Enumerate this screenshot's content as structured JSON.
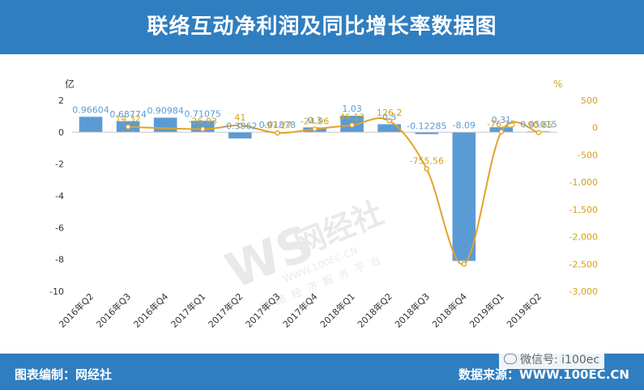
{
  "title": "联络互动净利润及同比增长率数据图",
  "footer": {
    "credit": "图表编制：网经社",
    "source": "数据来源：WWW.100EC.CN",
    "wechat": "微信号: i100ec"
  },
  "watermark": {
    "logo": "WS",
    "brand": "网经社",
    "url": "WWW.100EC.CN",
    "tagline": "网络经济服务平台"
  },
  "colors": {
    "header": "#2f7ec0",
    "bar": "#5b9bd5",
    "line": "#e2a22a",
    "bar_label": "#5b9bd5",
    "line_label": "#d4a017"
  },
  "chart_data": {
    "type": "bar",
    "categories": [
      "2016年Q2",
      "2016年Q3",
      "2016年Q4",
      "2017年Q1",
      "2017年Q2",
      "2017年Q3",
      "2017年Q4",
      "2018年Q1",
      "2018年Q2",
      "2018年Q3",
      "2018年Q4",
      "2019年Q1",
      "2019年Q2"
    ],
    "left_axis_unit": "亿",
    "right_axis_unit": "%",
    "ylim": [
      -10,
      2
    ],
    "y2lim": [
      -3000,
      500
    ],
    "yticks": [
      "2",
      "0",
      "-2",
      "-4",
      "-6",
      "-8",
      "-10"
    ],
    "y2ticks": [
      "500",
      "0",
      "-500",
      "-1,000",
      "-1,500",
      "-2,000",
      "-2,500",
      "-3,000"
    ],
    "series": [
      {
        "type": "bar",
        "axis": "left",
        "values": [
          0.96604,
          0.68774,
          0.90984,
          0.71075,
          -0.3962,
          0.01878,
          0.3,
          1.03,
          0.5,
          -0.12285,
          -8.09,
          0.31,
          0.05015
        ],
        "labels": [
          "0.96604",
          "0.68774",
          "0.90984",
          "0.71075",
          "-0.3962",
          "0.01878",
          "0.3",
          "1.03",
          "0.5",
          "-0.12285",
          "-8.09",
          "0.31",
          "0.05015"
        ]
      },
      {
        "type": "line",
        "axis": "right",
        "values": [
          null,
          14.32,
          null,
          -26.93,
          41,
          -97.27,
          -24.96,
          46.13,
          126.2,
          -755.56,
          -2500,
          -76.15,
          -90.65
        ],
        "labels": [
          "",
          "14.32",
          "",
          "-26.93",
          "41",
          "-97.27",
          "-24.96",
          "46.13",
          "126.2",
          "-755.56",
          "",
          "-76.15",
          "-90.65"
        ]
      }
    ]
  }
}
